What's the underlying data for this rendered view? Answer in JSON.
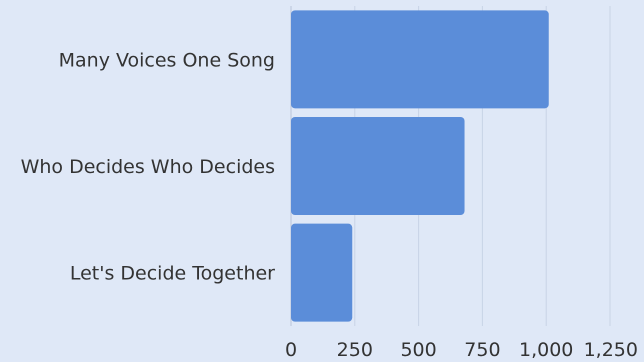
{
  "chart_data": {
    "type": "bar",
    "orientation": "horizontal",
    "categories": [
      "Many Voices One Song",
      "Who Decides Who Decides",
      "Let's Decide Together"
    ],
    "values": [
      1010,
      680,
      240
    ],
    "xlim": [
      0,
      1250
    ],
    "ticks": [
      0,
      250,
      500,
      750,
      1000,
      1250
    ],
    "tick_labels": [
      "0",
      "250",
      "500",
      "750",
      "1,000",
      "1,250"
    ],
    "title": "",
    "xlabel": "",
    "ylabel": "",
    "grid": true,
    "legend": "none",
    "bar_color": "#5b8dd9",
    "background_color": "#dfe8f7",
    "grid_color": "#c8d3e6"
  }
}
